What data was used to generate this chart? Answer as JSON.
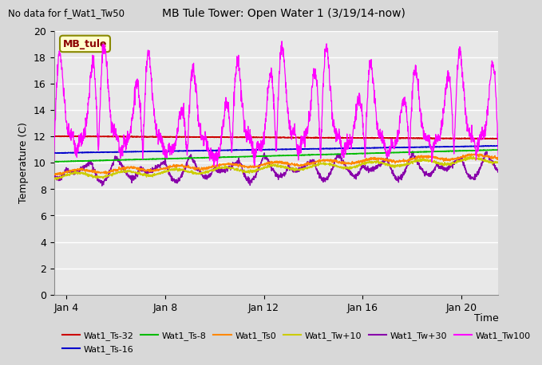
{
  "title": "MB Tule Tower: Open Water 1 (3/19/14-now)",
  "no_data_text": "No data for f_Wat1_Tw50",
  "xlabel": "Time",
  "ylabel": "Temperature (C)",
  "ylim": [
    0,
    20
  ],
  "yticks": [
    0,
    2,
    4,
    6,
    8,
    10,
    12,
    14,
    16,
    18,
    20
  ],
  "xlim_days": [
    3.5,
    21.5
  ],
  "xtick_days": [
    4,
    8,
    12,
    16,
    20
  ],
  "xtick_labels": [
    "Jan 4",
    "Jan 8",
    "Jan 12",
    "Jan 16",
    "Jan 20"
  ],
  "mb_tule_label": "MB_tule",
  "legend_entries": [
    {
      "label": "Wat1_Ts-32",
      "color": "#cc0000"
    },
    {
      "label": "Wat1_Ts-16",
      "color": "#0000cc"
    },
    {
      "label": "Wat1_Ts-8",
      "color": "#00bb00"
    },
    {
      "label": "Wat1_Ts0",
      "color": "#ff8800"
    },
    {
      "label": "Wat1_Tw+10",
      "color": "#cccc00"
    },
    {
      "label": "Wat1_Tw+30",
      "color": "#8800aa"
    },
    {
      "label": "Wat1_Tw100",
      "color": "#ff00ff"
    }
  ],
  "bg_color": "#d8d8d8",
  "plot_bg_color": "#e8e8e8",
  "grid_color": "#ffffff"
}
